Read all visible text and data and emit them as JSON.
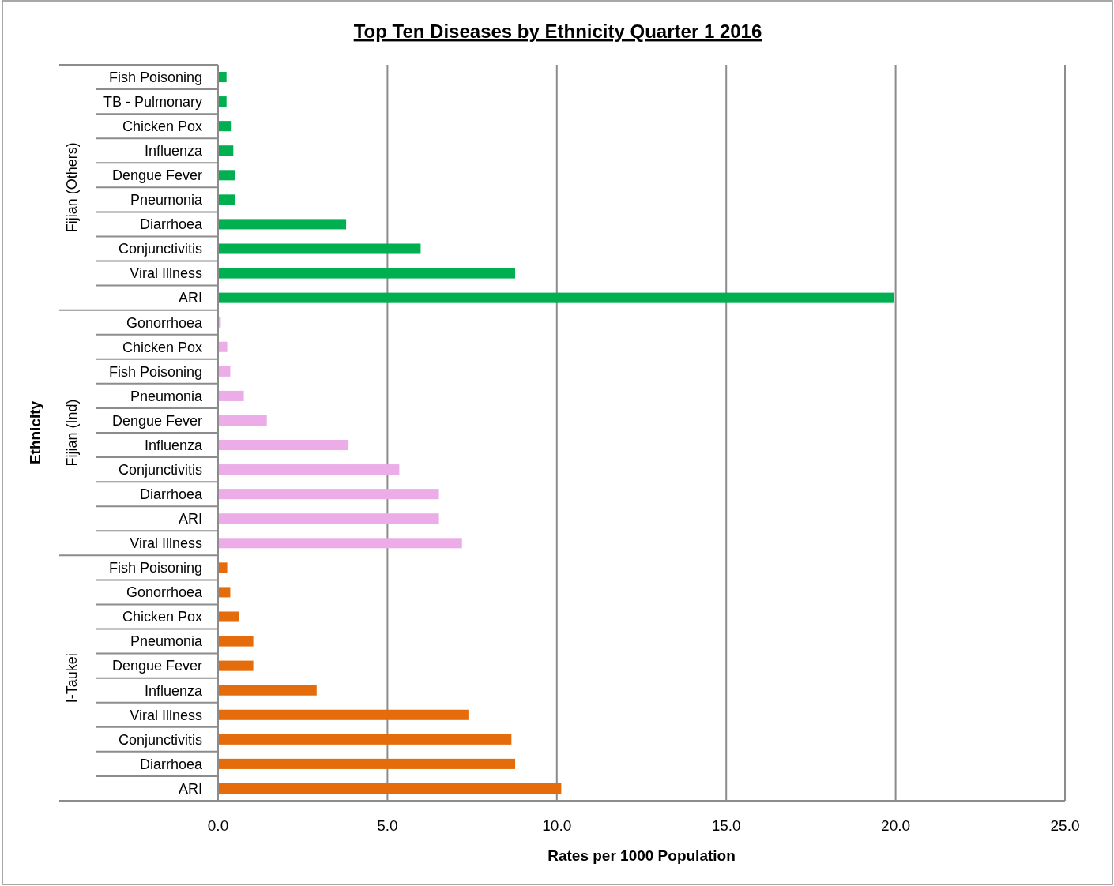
{
  "chart_data": {
    "type": "bar",
    "orientation": "horizontal",
    "title": "Top Ten Diseases by Ethnicity Quarter 1 2016",
    "xlabel": "Rates per 1000 Population",
    "ylabel": "Ethnicity",
    "categories": [
      "Fish Poisoning",
      "TB - Pulmonary",
      "Chicken Pox",
      "Influenza",
      "Dengue Fever",
      "Pneumonia",
      "Diarrhoea",
      "Conjunctivitis",
      "Viral Illness",
      "ARI",
      "Gonorrhoea",
      "Chicken Pox",
      "Fish Poisoning",
      "Pneumonia",
      "Dengue Fever",
      "Influenza",
      "Conjunctivitis",
      "Diarrhoea",
      "ARI",
      "Viral Illness",
      "Fish Poisoning",
      "Gonorrhoea",
      "Chicken Pox",
      "Pneumonia",
      "Dengue Fever",
      "Influenza",
      "Viral Illness",
      "Conjunctivitis",
      "Diarrhoea",
      "ARI"
    ],
    "series": [
      {
        "color": "#00b050",
        "values": [
          0.25,
          0.25,
          0.4,
          0.45,
          0.5,
          0.5,
          3.78,
          5.98,
          8.77,
          19.95,
          null,
          null,
          null,
          null,
          null,
          null,
          null,
          null,
          null,
          null,
          null,
          null,
          null,
          null,
          null,
          null,
          null,
          null,
          null,
          null
        ]
      },
      {
        "color": "#ecace8",
        "values": [
          null,
          null,
          null,
          null,
          null,
          null,
          null,
          null,
          null,
          null,
          0.08,
          0.27,
          0.36,
          0.76,
          1.44,
          3.85,
          5.35,
          6.52,
          6.52,
          7.2,
          null,
          null,
          null,
          null,
          null,
          null,
          null,
          null,
          null,
          null
        ]
      },
      {
        "color": "#e46c0a",
        "values": [
          null,
          null,
          null,
          null,
          null,
          null,
          null,
          null,
          null,
          null,
          null,
          null,
          null,
          null,
          null,
          null,
          null,
          null,
          null,
          null,
          0.27,
          0.36,
          0.62,
          1.04,
          1.04,
          2.91,
          7.39,
          8.66,
          8.77,
          10.13
        ]
      }
    ],
    "xlim": [
      0,
      25
    ],
    "xticks": [
      {
        "value": 0,
        "label": "0.0"
      },
      {
        "value": 5,
        "label": "5.0"
      },
      {
        "value": 10,
        "label": "10.0"
      },
      {
        "value": 15,
        "label": "15.0"
      },
      {
        "value": 20,
        "label": "20.0"
      },
      {
        "value": 25,
        "label": "25.0"
      }
    ],
    "annotations": [
      "Fijian (Others)",
      "Fijian (Ind)",
      "I-Taukei"
    ],
    "grid": "x"
  }
}
